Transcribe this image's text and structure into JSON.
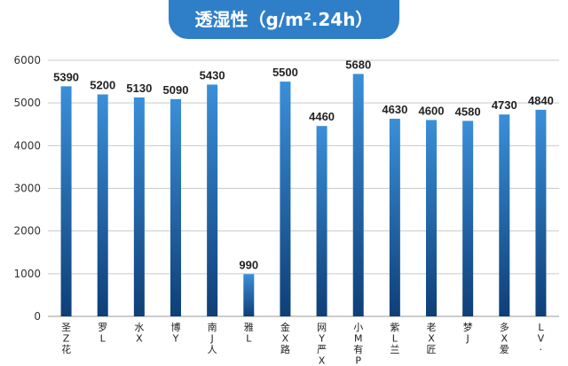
{
  "title": "透湿性（g/m².24h）",
  "colors": {
    "bar_top": "#3a8fd8",
    "bar_bottom": "#0e3f78",
    "title_bg": "#2f7fc8"
  },
  "chart_data": {
    "type": "bar",
    "title": "透湿性（g/m².24h）",
    "categories": [
      "圣Z花",
      "罗L",
      "水X",
      "博Y",
      "南J人",
      "雅L",
      "金X路",
      "网Y严X",
      "小M有P",
      "紫L兰",
      "老X匠",
      "梦J",
      "多X爱",
      "LV·"
    ],
    "values": [
      5390,
      5200,
      5130,
      5090,
      5430,
      990,
      5500,
      4460,
      5680,
      4630,
      4600,
      4580,
      4730,
      4840
    ],
    "ylim": [
      0,
      6000
    ],
    "yticks": [
      0,
      1000,
      2000,
      3000,
      4000,
      5000,
      6000
    ],
    "grid": true,
    "xlabel": "",
    "ylabel": ""
  }
}
